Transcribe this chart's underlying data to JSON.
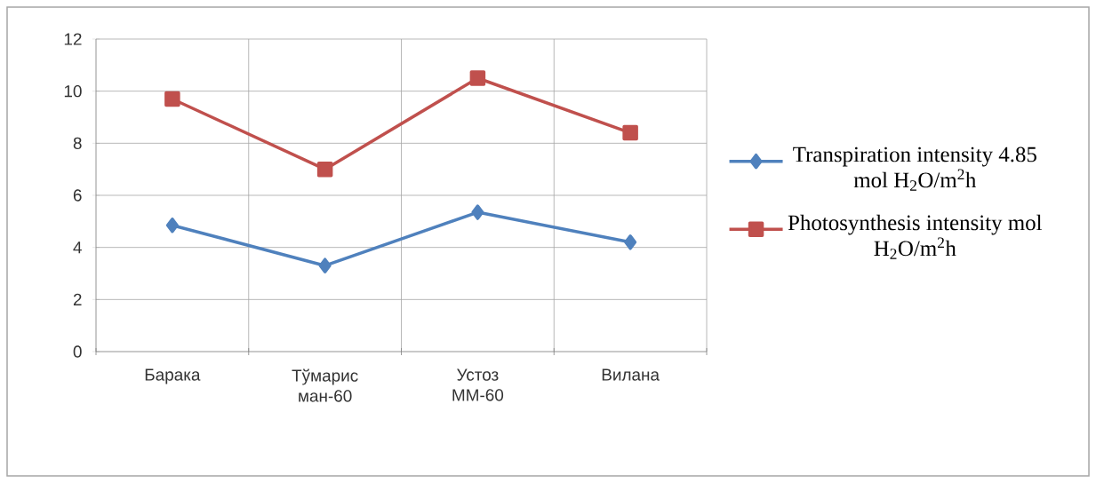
{
  "chart_data": {
    "type": "line",
    "categories": [
      "Барака",
      "Тўмарис ман-60",
      "Устоз ММ-60",
      "Вилана"
    ],
    "series": [
      {
        "name": "Transpiration intensity 4.85 mol H$_{2}$O/m$^{2}$h",
        "color": "#4f81bd",
        "marker": "diamond",
        "values": [
          4.85,
          3.3,
          5.35,
          4.2
        ]
      },
      {
        "name": "Photosynthesis intensity mol H$_{2}$O/m$^{2}$h",
        "color": "#c0504d",
        "marker": "square",
        "values": [
          9.7,
          7.0,
          10.5,
          8.4
        ]
      }
    ],
    "ylim": [
      0,
      12
    ],
    "yticks": [
      0,
      2,
      4,
      6,
      8,
      10,
      12
    ],
    "grid": true,
    "legend": "right"
  }
}
